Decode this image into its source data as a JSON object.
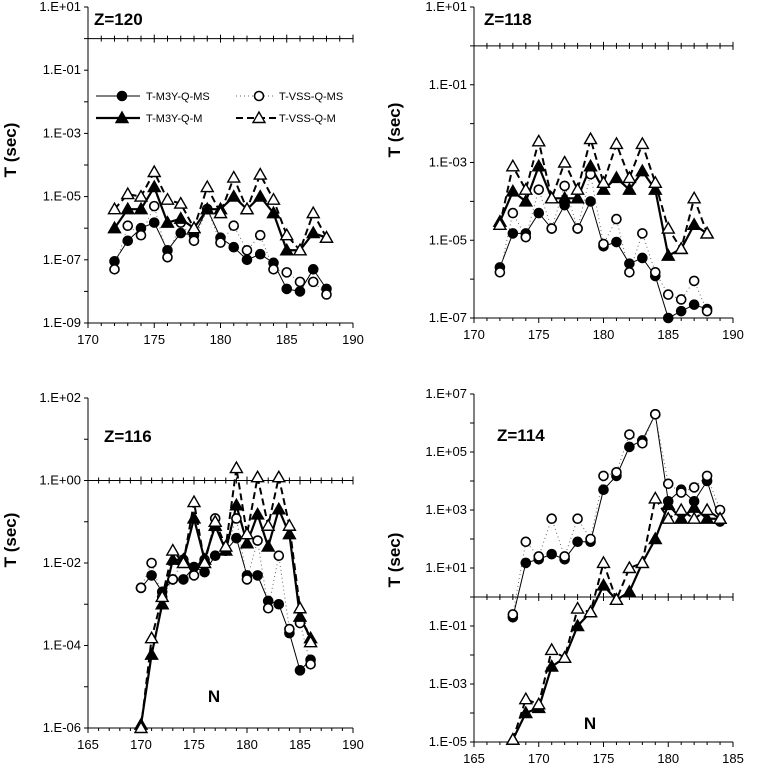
{
  "chart_data": [
    {
      "type": "line",
      "title": "Z=120",
      "xlabel": "",
      "ylabel": "T (sec)",
      "xlim": [
        170,
        190
      ],
      "xticks": [
        170,
        175,
        180,
        185,
        190
      ],
      "ylim_log10": [
        -9,
        1
      ],
      "ytick_labels": [
        "1.E+01",
        "1.E-01",
        "1.E-03",
        "1.E-05",
        "1.E-07",
        "1.E-09"
      ],
      "ytick_exps": [
        1,
        -1,
        -3,
        -5,
        -7,
        -9
      ],
      "xaxis_at_log10": 0,
      "x": [
        172,
        173,
        174,
        175,
        176,
        177,
        178,
        179,
        180,
        181,
        182,
        183,
        184,
        185,
        186,
        187,
        188
      ],
      "legend": {
        "position": "top-left",
        "entries": [
          "T-M3Y-Q-MS",
          "T-VSS-Q-MS",
          "T-M3Y-Q-M",
          "T-VSS-Q-M"
        ]
      },
      "series": [
        {
          "name": "T-M3Y-Q-MS",
          "style": "filled-circle-thin",
          "values": [
            9e-08,
            4e-07,
            1e-06,
            1.5e-06,
            2e-07,
            7e-07,
            6e-07,
            4e-06,
            5e-07,
            2.5e-07,
            1e-07,
            1.5e-07,
            8e-08,
            1.2e-08,
            1e-08,
            5e-08,
            1.2e-08
          ]
        },
        {
          "name": "T-VSS-Q-MS",
          "style": "open-circle-dotted",
          "values": [
            5e-08,
            1.2e-06,
            6e-07,
            5e-06,
            1.2e-07,
            1.5e-06,
            4e-07,
            4e-06,
            3.5e-07,
            1.2e-06,
            2e-07,
            6e-07,
            5e-08,
            4e-08,
            2e-08,
            2e-08,
            8e-09
          ]
        },
        {
          "name": "T-M3Y-Q-M",
          "style": "filled-triangle-thick",
          "values": [
            1e-06,
            4e-06,
            4e-06,
            2e-05,
            1.5e-06,
            2e-06,
            1e-06,
            4e-06,
            4e-06,
            1e-05,
            4e-06,
            1e-05,
            3e-06,
            2e-07,
            2e-07,
            7e-07,
            5e-07
          ]
        },
        {
          "name": "T-VSS-Q-M",
          "style": "open-triangle-dashed",
          "values": [
            4e-06,
            1.2e-05,
            1e-05,
            6e-05,
            8e-06,
            6e-06,
            1e-06,
            2e-05,
            3e-06,
            4e-05,
            4e-06,
            5e-05,
            8e-06,
            6e-07,
            2e-07,
            3e-06,
            5e-07
          ]
        }
      ]
    },
    {
      "type": "line",
      "title": "Z=118",
      "xlabel": "",
      "ylabel": "T (sec)",
      "xlim": [
        170,
        190
      ],
      "xticks": [
        170,
        175,
        180,
        185,
        190
      ],
      "ylim_log10": [
        -7,
        1
      ],
      "ytick_labels": [
        "1.E+01",
        "1.E-01",
        "1.E-03",
        "1.E-05",
        "1.E-07"
      ],
      "ytick_exps": [
        1,
        -1,
        -3,
        -5,
        -7
      ],
      "xaxis_at_log10": 0,
      "x": [
        172,
        173,
        174,
        175,
        176,
        177,
        178,
        179,
        180,
        181,
        182,
        183,
        184,
        185,
        186,
        187,
        188
      ],
      "series": [
        {
          "name": "T-M3Y-Q-MS",
          "style": "filled-circle-thin",
          "values": [
            2e-06,
            1.5e-05,
            1.5e-05,
            5e-05,
            2e-05,
            8e-05,
            2e-05,
            0.0001,
            7e-06,
            9e-06,
            2.5e-06,
            3.5e-06,
            1.2e-06,
            1e-07,
            1.5e-07,
            2.2e-07,
            1.7e-07
          ]
        },
        {
          "name": "T-VSS-Q-MS",
          "style": "open-circle-dotted",
          "values": [
            1.5e-06,
            5e-05,
            1.2e-05,
            0.0002,
            2e-05,
            0.00025,
            2e-05,
            0.0005,
            8e-06,
            3.5e-05,
            1.5e-06,
            1.5e-05,
            1.5e-06,
            4e-07,
            3e-07,
            9e-07,
            1.5e-07
          ]
        },
        {
          "name": "T-M3Y-Q-M",
          "style": "filled-triangle-thick",
          "values": [
            3e-05,
            0.00018,
            0.0001,
            0.0008,
            0.00012,
            0.00012,
            0.00012,
            0.0008,
            0.0002,
            0.0004,
            0.0002,
            0.0006,
            0.0002,
            4e-06,
            6e-06,
            2.5e-05,
            1.5e-05
          ]
        },
        {
          "name": "T-VSS-Q-M",
          "style": "open-triangle-dashed",
          "values": [
            2.5e-05,
            0.0008,
            0.0002,
            0.0035,
            0.00012,
            0.001,
            0.0002,
            0.004,
            0.0003,
            0.003,
            0.0004,
            0.003,
            0.0003,
            2e-05,
            6e-06,
            0.00012,
            1.5e-05
          ]
        }
      ]
    },
    {
      "type": "line",
      "title": "Z=116",
      "xlabel": "N",
      "ylabel": "T (sec)",
      "xlim": [
        165,
        190
      ],
      "xticks": [
        165,
        170,
        175,
        180,
        185,
        190
      ],
      "ylim_log10": [
        -6,
        2
      ],
      "ytick_labels": [
        "1.E+02",
        "1.E+00",
        "1.E-02",
        "1.E-04",
        "1.E-06"
      ],
      "ytick_exps": [
        2,
        0,
        -2,
        -4,
        -6
      ],
      "xaxis_at_log10": 0,
      "x": [
        170,
        171,
        172,
        173,
        174,
        175,
        176,
        177,
        178,
        179,
        180,
        181,
        182,
        183,
        184,
        185,
        186
      ],
      "series": [
        {
          "name": "T-M3Y-Q-MS",
          "style": "filled-circle-thin",
          "values": [
            0.0025,
            0.005,
            0.002,
            0.004,
            0.004,
            0.008,
            0.006,
            0.015,
            0.02,
            0.04,
            0.005,
            0.005,
            0.0012,
            0.001,
            0.0002,
            2.5e-05,
            4.5e-05
          ]
        },
        {
          "name": "T-VSS-Q-MS",
          "style": "open-circle-dotted",
          "values": [
            0.0025,
            0.01,
            0.0015,
            0.004,
            0.012,
            0.005,
            0.012,
            0.12,
            0.02,
            0.12,
            0.004,
            0.035,
            0.0008,
            0.015,
            0.00025,
            0.00035,
            3.5e-05
          ]
        },
        {
          "name": "T-M3Y-Q-M",
          "style": "filled-triangle-thick",
          "values": [
            1.2e-06,
            6e-05,
            0.001,
            0.012,
            0.012,
            0.12,
            0.012,
            0.08,
            0.02,
            0.25,
            0.03,
            0.15,
            0.025,
            0.2,
            0.05,
            0.0005,
            0.00015
          ]
        },
        {
          "name": "T-VSS-Q-M",
          "style": "open-triangle-dashed",
          "values": [
            1e-06,
            0.00015,
            0.0015,
            0.02,
            0.01,
            0.3,
            0.01,
            0.1,
            0.025,
            2,
            0.05,
            1.2,
            0.08,
            1.2,
            0.08,
            0.0008,
            0.00012
          ]
        }
      ]
    },
    {
      "type": "line",
      "title": "Z=114",
      "xlabel": "N",
      "ylabel": "T (sec)",
      "xlim": [
        165,
        185
      ],
      "xticks": [
        165,
        170,
        175,
        180,
        185
      ],
      "ylim_log10": [
        -5,
        7
      ],
      "ytick_labels": [
        "1.E+07",
        "1.E+05",
        "1.E+03",
        "1.E+01",
        "1.E-01",
        "1.E-03",
        "1.E-05"
      ],
      "ytick_exps": [
        7,
        5,
        3,
        1,
        -1,
        -3,
        -5
      ],
      "xaxis_at_log10": 0,
      "x": [
        168,
        169,
        170,
        171,
        172,
        173,
        174,
        175,
        176,
        177,
        178,
        179,
        180,
        181,
        182,
        183,
        184
      ],
      "series": [
        {
          "name": "T-M3Y-Q-MS",
          "style": "filled-circle-thin",
          "values": [
            0.2,
            15,
            20,
            30,
            20,
            80,
            80,
            5000,
            15000,
            150000,
            250000,
            2000000,
            2000,
            5000,
            2000,
            10000,
            400
          ]
        },
        {
          "name": "T-VSS-Q-MS",
          "style": "open-circle-dotted",
          "values": [
            0.25,
            80,
            25,
            500,
            25,
            500,
            100,
            15000,
            20000,
            400000,
            200000,
            2000000,
            8000,
            4000,
            6000,
            15000,
            1000
          ]
        },
        {
          "name": "T-M3Y-Q-M",
          "style": "filled-triangle-thick",
          "values": [
            1.2e-05,
            0.0001,
            0.00015,
            0.004,
            0.008,
            0.1,
            0.3,
            2.5,
            0.8,
            1.5,
            15,
            100,
            1500,
            500,
            1200,
            500,
            500
          ]
        },
        {
          "name": "T-VSS-Q-M",
          "style": "open-triangle-dashed",
          "values": [
            1.2e-05,
            0.0003,
            0.0002,
            0.015,
            0.008,
            0.4,
            0.3,
            15,
            0.8,
            10,
            15,
            2500,
            500,
            1000,
            500,
            1000,
            500
          ]
        }
      ]
    }
  ]
}
